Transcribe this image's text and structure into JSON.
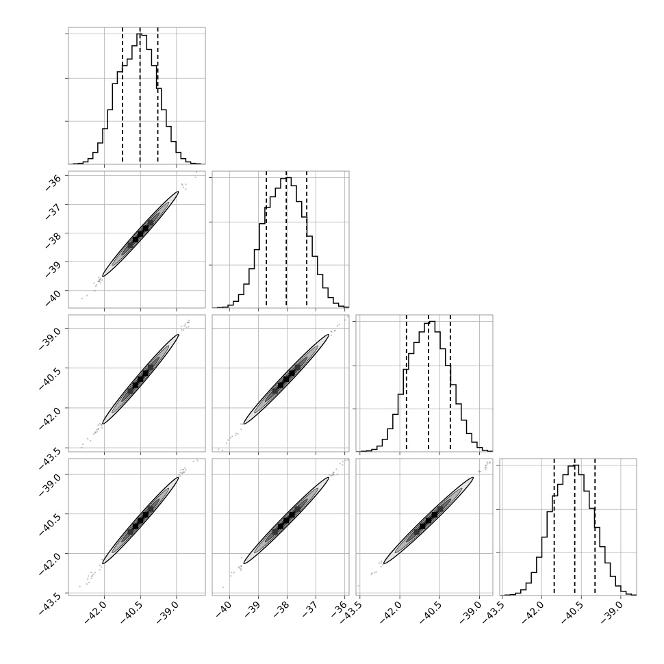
{
  "chart_data": {
    "type": "corner",
    "description_free": true,
    "parameters": [
      {
        "index": 0,
        "range": [
          -43.5,
          -37.8
        ],
        "ticks": [
          -42.0,
          -40.5,
          -39.0
        ],
        "tick_labels": [
          "−42.0",
          "−40.5",
          "−39.0"
        ],
        "quantiles": [
          -41.25,
          -40.52,
          -39.78
        ],
        "mean": -40.5,
        "sd": 0.75
      },
      {
        "index": 1,
        "range": [
          -40.6,
          -35.85
        ],
        "ticks": [
          -40,
          -39,
          -38,
          -37,
          -36
        ],
        "tick_labels": [
          "−40",
          "−39",
          "−38",
          "−37",
          "−36"
        ],
        "quantiles": [
          -38.72,
          -38.03,
          -37.32
        ],
        "mean": -38.03,
        "sd": 0.7
      },
      {
        "index": 2,
        "range": [
          -43.65,
          -38.5
        ],
        "ticks": [
          -43.5,
          -42.0,
          -40.5,
          -39.0
        ],
        "tick_labels": [
          "−43.5",
          "−42.0",
          "−40.5",
          "−39.0"
        ],
        "quantiles": [
          -41.75,
          -40.92,
          -40.1
        ],
        "mean": -40.92,
        "sd": 0.8
      },
      {
        "index": 3,
        "range": [
          -43.6,
          -38.4
        ],
        "ticks": [
          -43.5,
          -42.0,
          -40.5,
          -39.0
        ],
        "tick_labels": [
          "−43.5",
          "−42.0",
          "−40.5",
          "−39.0"
        ],
        "quantiles": [
          -41.53,
          -40.75,
          -39.98
        ],
        "mean": -40.75,
        "sd": 0.78
      }
    ],
    "histograms": [
      [
        0,
        1,
        2,
        5,
        12,
        25,
        45,
        75,
        115,
        170,
        195,
        208,
        222,
        250,
        275,
        272,
        242,
        208,
        160,
        115,
        80,
        48,
        25,
        12,
        5,
        2,
        1,
        0
      ],
      [
        0,
        1,
        2,
        6,
        14,
        28,
        50,
        82,
        122,
        176,
        210,
        232,
        250,
        270,
        272,
        255,
        222,
        190,
        150,
        108,
        70,
        42,
        22,
        10,
        4,
        2
      ],
      [
        0,
        1,
        2,
        5,
        12,
        26,
        48,
        78,
        120,
        172,
        205,
        228,
        250,
        268,
        272,
        250,
        215,
        180,
        140,
        100,
        66,
        38,
        20,
        9,
        3,
        1
      ],
      [
        0,
        1,
        2,
        5,
        12,
        26,
        48,
        80,
        122,
        175,
        208,
        232,
        252,
        270,
        272,
        252,
        218,
        182,
        142,
        102,
        68,
        40,
        20,
        9,
        3,
        1
      ]
    ],
    "correlation": 0.995,
    "levels_sigma": [
      0.5,
      1.0,
      1.5,
      2.0
    ],
    "title": "",
    "grid": true
  }
}
